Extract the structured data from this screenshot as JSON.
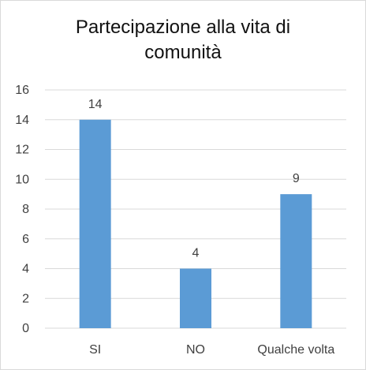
{
  "chart_data": {
    "type": "bar",
    "title_lines": [
      "Partecipazione  alla vita di",
      "comunità"
    ],
    "categories": [
      "SI",
      "NO",
      "Qualche volta"
    ],
    "values": [
      14,
      4,
      9
    ],
    "data_labels": [
      "14",
      "4",
      "9"
    ],
    "ylim": [
      0,
      16
    ],
    "yticks": [
      0,
      2,
      4,
      6,
      8,
      10,
      12,
      14,
      16
    ],
    "grid": true,
    "legend": "none",
    "bar_color": "#5b9bd5",
    "grid_color": "#d9d9d9"
  }
}
